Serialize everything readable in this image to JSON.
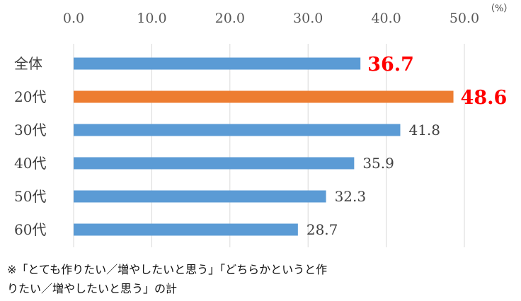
{
  "chart_data": {
    "type": "bar",
    "orientation": "horizontal",
    "categories": [
      "全体",
      "20代",
      "30代",
      "40代",
      "50代",
      "60代"
    ],
    "values": [
      36.7,
      48.6,
      41.8,
      35.9,
      32.3,
      28.7
    ],
    "tick_values": [
      0,
      10,
      20,
      30,
      40,
      50
    ],
    "tick_labels": [
      "0.0",
      "10.0",
      "20.0",
      "30.0",
      "40.0",
      "50.0"
    ],
    "value_labels": [
      "36.7",
      "48.6",
      "41.8",
      "35.9",
      "32.3",
      "28.7"
    ],
    "xlim": [
      0,
      50
    ],
    "unit_label": "（%）",
    "highlight_indices": [
      0,
      1
    ],
    "grid": true,
    "axis_position": "top",
    "colors": {
      "default_bar": "#5B9BD5",
      "highlight_bar": "#ED7D31",
      "highlight_label": "#FF0000",
      "gridline": "#D9D9D9",
      "label": "#404040"
    }
  },
  "note": {
    "line1": "※「とても作りたい／増やしたいと思う」「どちらかというと作",
    "line2": "りたい／増やしたいと思う」の計"
  }
}
